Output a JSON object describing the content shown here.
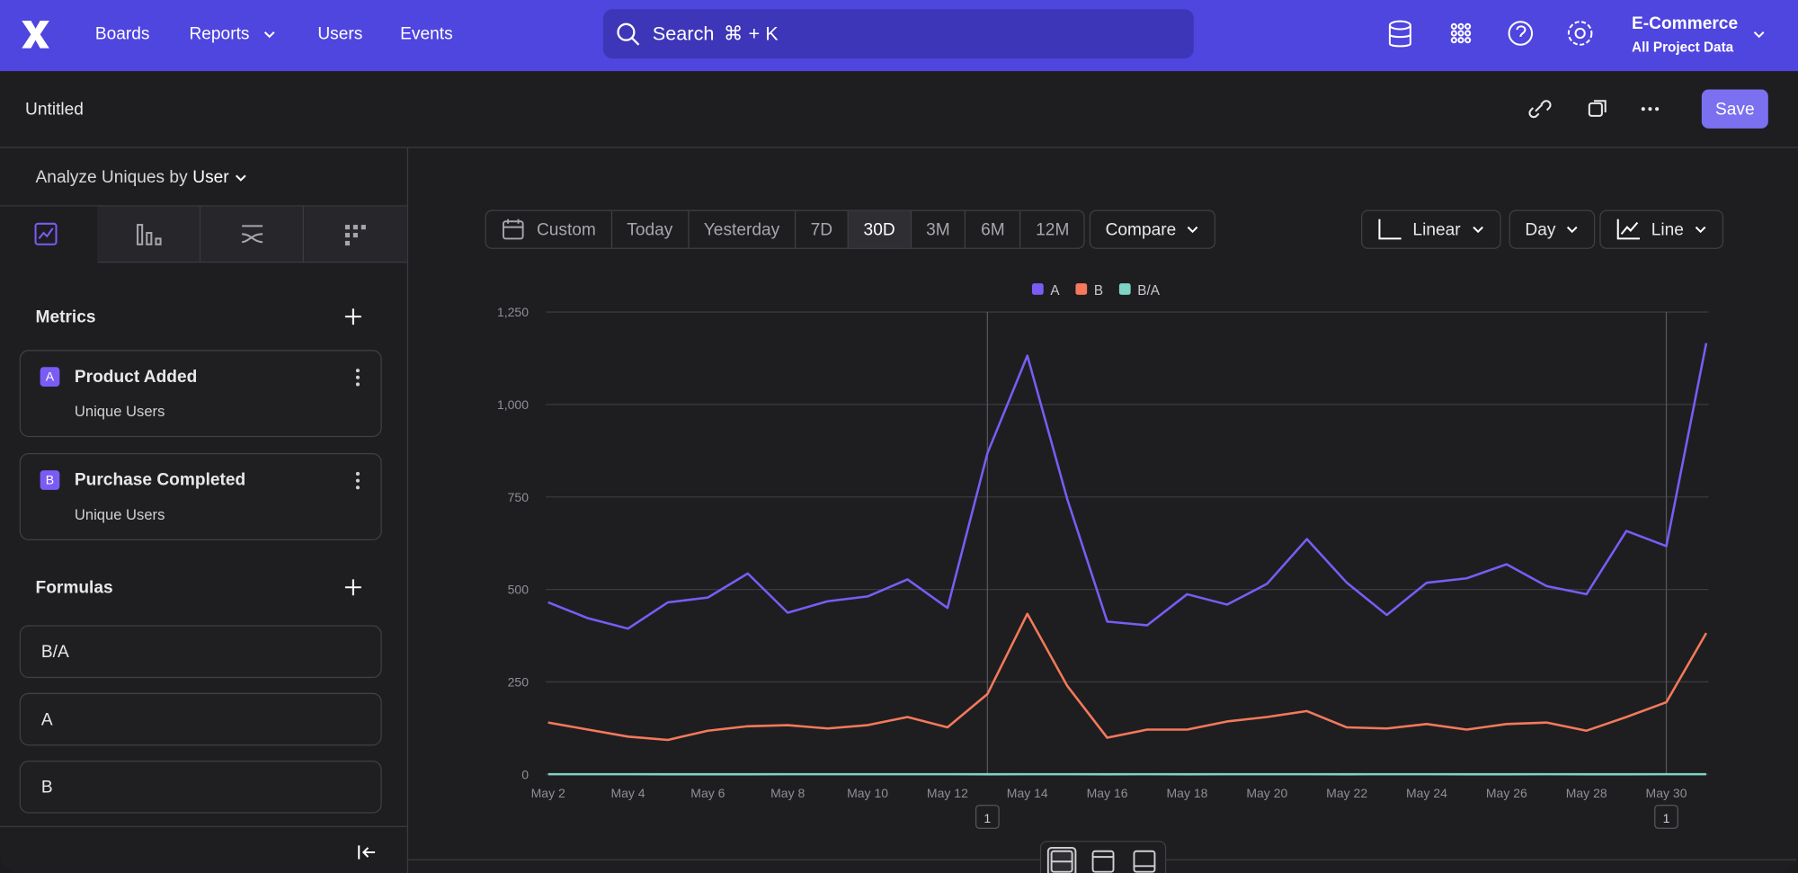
{
  "nav": {
    "items": [
      "Boards",
      "Reports",
      "Users",
      "Events"
    ],
    "search": "Search",
    "shortcut": "⌘ + K",
    "project": "E-Commerce",
    "project_sub": "All Project Data"
  },
  "header": {
    "title": "Untitled",
    "save": "Save"
  },
  "sidebar": {
    "analyze_label": "Analyze Uniques by",
    "analyze_value": "User",
    "metrics_title": "Metrics",
    "metrics": [
      {
        "letter": "A",
        "name": "Product Added",
        "sub": "Unique Users"
      },
      {
        "letter": "B",
        "name": "Purchase Completed",
        "sub": "Unique Users"
      }
    ],
    "formulas_title": "Formulas",
    "formulas": [
      "B/A",
      "A",
      "B"
    ]
  },
  "toolbar": {
    "ranges": [
      "Custom",
      "Today",
      "Yesterday",
      "7D",
      "30D",
      "3M",
      "6M",
      "12M"
    ],
    "selected": 4,
    "compare": "Compare",
    "scale": "Linear",
    "interval": "Day",
    "chart_kind": "Line"
  },
  "chart_data": {
    "type": "line",
    "categories": [
      "May 2",
      null,
      "May 4",
      null,
      "May 6",
      null,
      "May 8",
      null,
      "May 10",
      null,
      "May 12",
      null,
      "May 14",
      null,
      "May 16",
      null,
      "May 18",
      null,
      "May 20",
      null,
      "May 22",
      null,
      "May 24",
      null,
      "May 26",
      null,
      "May 28",
      null,
      "May 30",
      null
    ],
    "series": [
      {
        "name": "A",
        "color": "#7a5cf5",
        "values": [
          465,
          422,
          394,
          465,
          478,
          543,
          437,
          468,
          481,
          527,
          450,
          868,
          1132,
          744,
          413,
          403,
          487,
          459,
          515,
          636,
          518,
          431,
          518,
          530,
          568,
          509,
          487,
          658,
          617,
          1166
        ]
      },
      {
        "name": "B",
        "color": "#f5795a",
        "values": [
          140,
          121,
          102,
          93,
          118,
          130,
          133,
          124,
          133,
          155,
          127,
          217,
          434,
          239,
          99,
          121,
          121,
          143,
          155,
          171,
          127,
          124,
          136,
          121,
          136,
          140,
          118,
          155,
          195,
          382
        ]
      },
      {
        "name": "B/A",
        "color": "#7fd3c5",
        "values": [
          0.3,
          0.29,
          0.26,
          0.2,
          0.25,
          0.24,
          0.3,
          0.26,
          0.28,
          0.29,
          0.28,
          0.25,
          0.38,
          0.32,
          0.24,
          0.3,
          0.25,
          0.31,
          0.3,
          0.27,
          0.25,
          0.29,
          0.26,
          0.23,
          0.24,
          0.28,
          0.24,
          0.24,
          0.32,
          0.33
        ]
      }
    ],
    "ylim": [
      0,
      1250
    ],
    "yticks": [
      0,
      250,
      500,
      750,
      {
        "value": 1000,
        "label": "1,000"
      },
      {
        "value": 1250,
        "label": "1,250"
      }
    ],
    "grid": true,
    "annotations": [
      {
        "at": 11,
        "label": "1"
      },
      {
        "at": 28,
        "label": "1"
      }
    ]
  }
}
